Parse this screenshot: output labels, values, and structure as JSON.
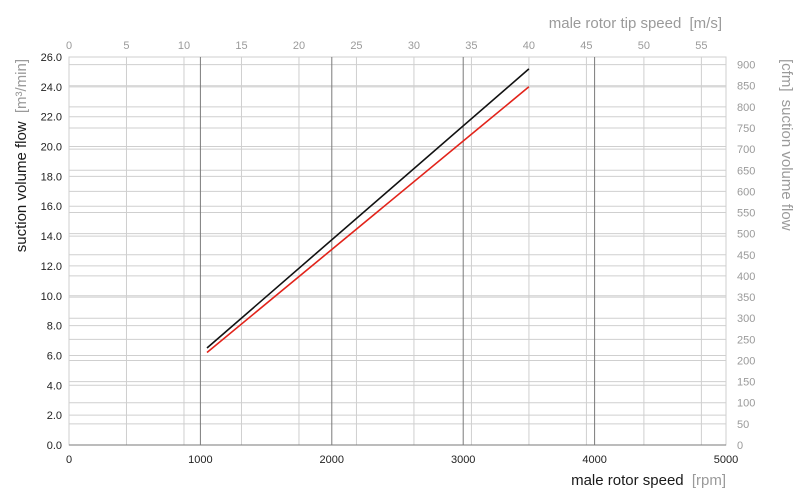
{
  "chart_data": {
    "type": "line",
    "x_axis_bottom": {
      "label": "male rotor speed",
      "unit": "[rpm]",
      "range": [
        0,
        5000
      ],
      "ticks": [
        "0",
        "1000",
        "2000",
        "3000",
        "4000",
        "5000"
      ]
    },
    "x_axis_top": {
      "label": "male rotor tip speed",
      "unit": "[m/s]",
      "range": [
        0,
        57.14
      ],
      "ticks": [
        "0",
        "5",
        "10",
        "15",
        "20",
        "25",
        "30",
        "35",
        "40",
        "45",
        "50",
        "55"
      ]
    },
    "y_axis_left": {
      "label": "suction volume flow",
      "unit": "[m³/min]",
      "range": [
        0,
        26
      ],
      "ticks": [
        "0.0",
        "2.0",
        "4.0",
        "6.0",
        "8.0",
        "10.0",
        "12.0",
        "14.0",
        "16.0",
        "18.0",
        "20.0",
        "22.0",
        "24.0",
        "26.0"
      ]
    },
    "y_axis_right": {
      "label": "suction volume flow",
      "unit": "[cfm]",
      "range": [
        0,
        918
      ],
      "ticks": [
        "0",
        "50",
        "100",
        "150",
        "200",
        "250",
        "300",
        "350",
        "400",
        "450",
        "500",
        "550",
        "600",
        "650",
        "700",
        "750",
        "800",
        "850",
        "900"
      ]
    },
    "grid": true,
    "legend": "none",
    "series": [
      {
        "color": "#111111",
        "x": [
          1050,
          3500
        ],
        "y": [
          6.5,
          25.2
        ]
      },
      {
        "color": "#e2231a",
        "x": [
          1050,
          3500
        ],
        "y": [
          6.2,
          24.0
        ]
      }
    ]
  },
  "colors": {
    "dark_text": "#1a1a1a",
    "grey_text": "#9a9a9a",
    "grid_light": "#cfcfcf",
    "grid_dark": "#7a7a7a"
  }
}
